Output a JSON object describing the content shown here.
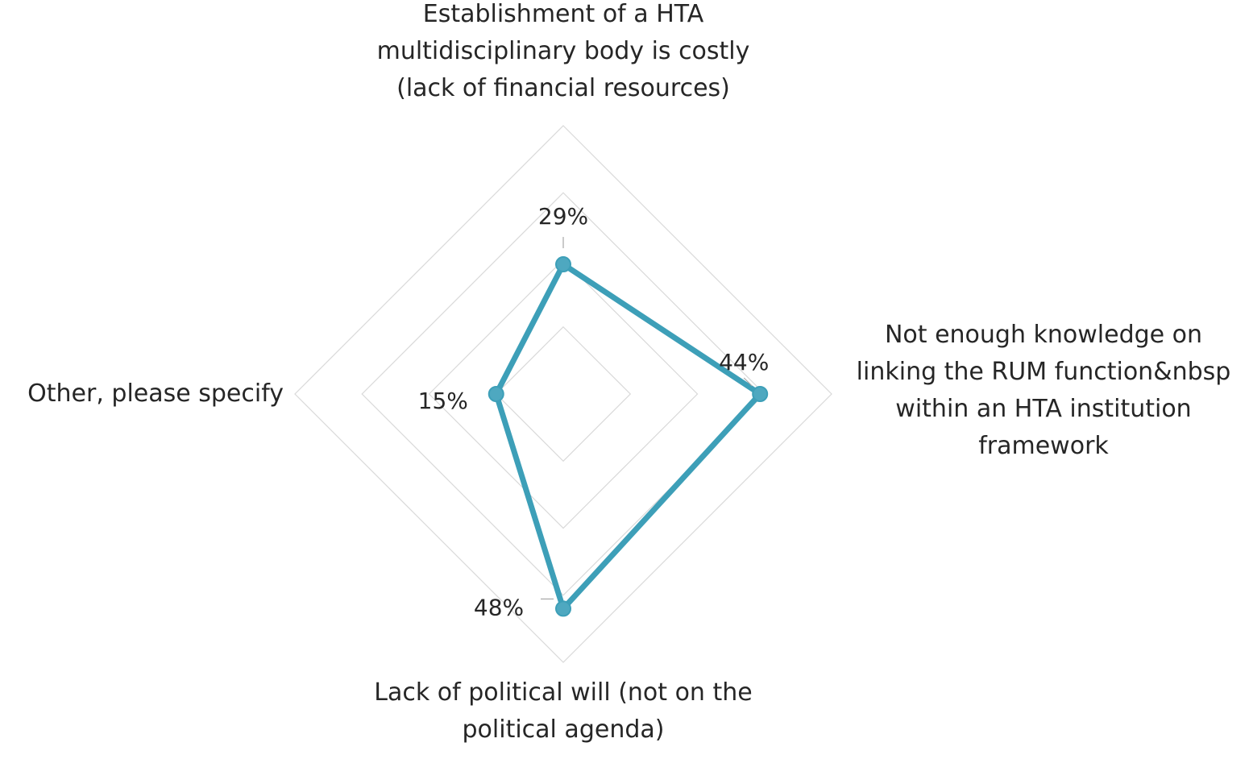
{
  "chart_data": {
    "type": "radar",
    "categories": [
      "Establishment of a HTA multidisciplinary body is costly (lack of financial resources)",
      "Not enough knowledge on linking the RUM function&nbsp within an HTA institution framework",
      "Lack of political will (not on the political agenda)",
      "Other, please specify"
    ],
    "category_lines": [
      [
        "Establishment of a HTA",
        "multidisciplinary body is costly",
        "(lack of financial resources)"
      ],
      [
        "Not enough knowledge on",
        "linking the RUM function&nbsp",
        "within an HTA institution",
        "framework"
      ],
      [
        "Lack of political will (not on the",
        "political agenda)"
      ],
      [
        "Other, please specify"
      ]
    ],
    "series": [
      {
        "values": [
          29,
          44,
          48,
          15
        ]
      }
    ],
    "data_labels": [
      "29%",
      "44%",
      "48%",
      "15%"
    ],
    "rmax": 60,
    "ring_count": 4,
    "grid": true,
    "legend": "none",
    "colors": {
      "series": "#3d9fb8",
      "marker": "#4ea8c0",
      "grid": "#d9d9d9",
      "text": "#262626"
    }
  }
}
